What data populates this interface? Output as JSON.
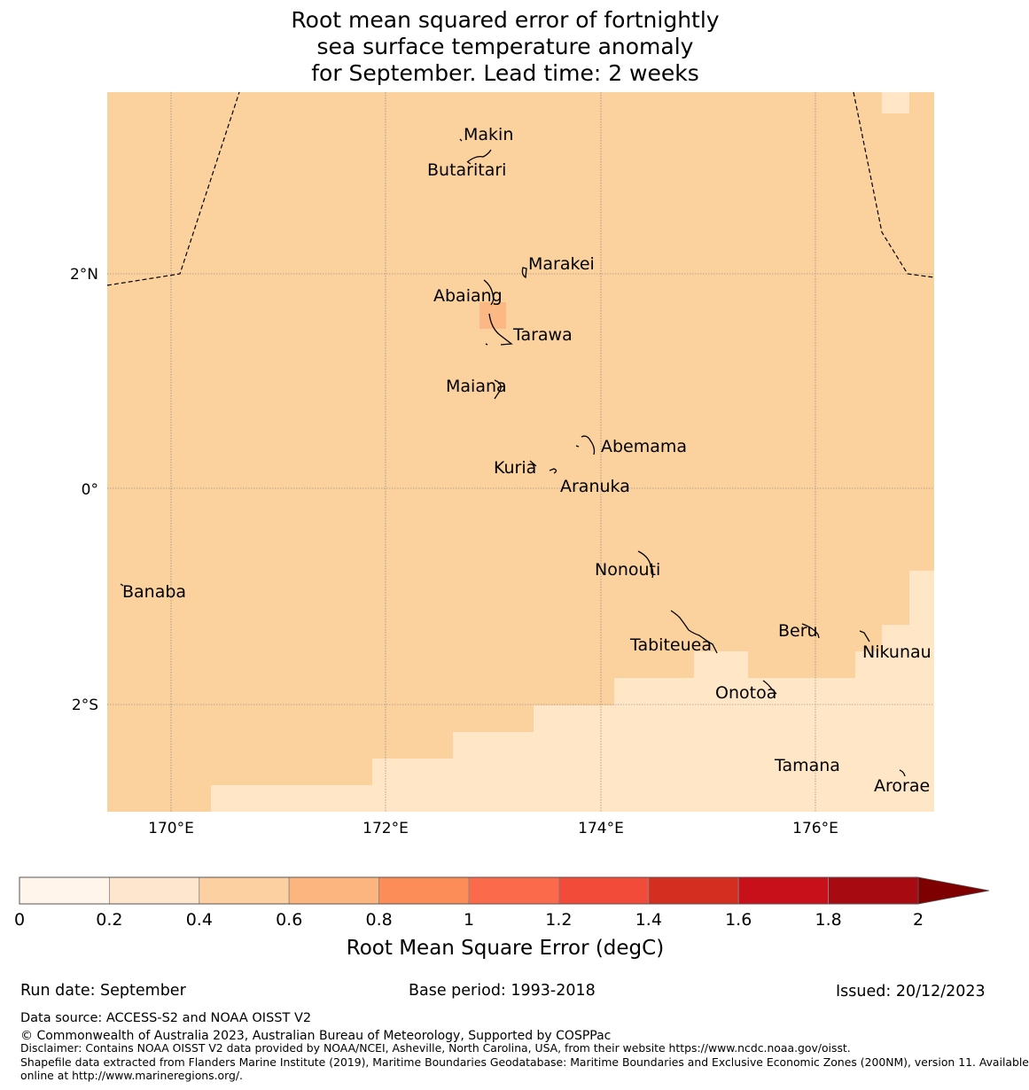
{
  "title": {
    "line1": "Root mean squared error of fortnightly",
    "line2": "sea surface temperature anomaly",
    "line3": "for September. Lead time: 2 weeks"
  },
  "map": {
    "lat_ticks": [
      "2°N",
      "0°",
      "2°S"
    ],
    "lon_ticks": [
      "170°E",
      "172°E",
      "174°E",
      "176°E"
    ],
    "islands": [
      "Makin",
      "Butaritari",
      "Marakei",
      "Abaiang",
      "Tarawa",
      "Maiana",
      "Abemama",
      "Kuria",
      "Aranuka",
      "Nonouti",
      "Banaba",
      "Tabiteuea",
      "Beru",
      "Nikunau",
      "Onotoa",
      "Tamana",
      "Arorae"
    ]
  },
  "colorbar": {
    "label": "Root Mean Square Error (degC)",
    "ticks": [
      "0",
      "0.2",
      "0.4",
      "0.6",
      "0.8",
      "1",
      "1.2",
      "1.4",
      "1.6",
      "1.8",
      "2"
    ],
    "colors": [
      "#fff5eb",
      "#fee6ce",
      "#fdd0a2",
      "#fdb57f",
      "#fc8d59",
      "#fb6a4a",
      "#f34b3a",
      "#d42e21",
      "#c8101b",
      "#a70a10"
    ],
    "extend_color": "#7f0000"
  },
  "footer": {
    "run_date": "Run date: September",
    "base_period": "Base period: 1993-2018",
    "issued": "Issued: 20/12/2023",
    "data_source": "Data source: ACCESS-S2 and NOAA OISST V2",
    "copyright": "© Commonwealth of Australia 2023, Australian Bureau of Meteorology, Supported by COSPPac",
    "disclaimer": "Disclaimer: Contains NOAA OISST V2 data provided by NOAA/NCEI, Asheville, North Carolina, USA, from their website https://www.ncdc.noaa.gov/oisst.",
    "shapefile_line1": "Shapefile data extracted from Flanders Marine Institute (2019), Maritime Boundaries Geodatabase: Maritime Boundaries and Exclusive Economic Zones (200NM), version 11. Available",
    "shapefile_line2": "online at http://www.marineregions.org/."
  }
}
